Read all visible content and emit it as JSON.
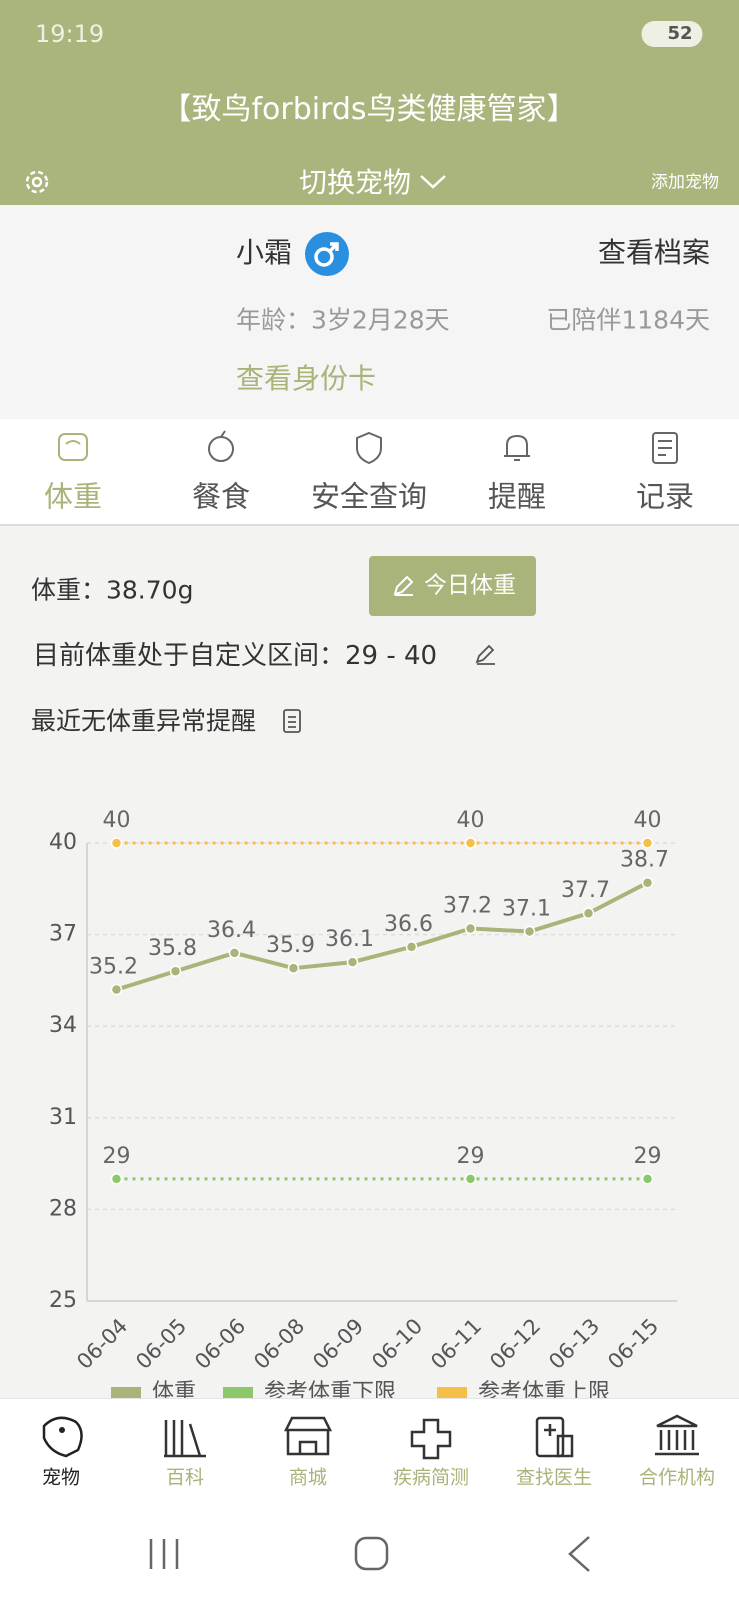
{
  "status": {
    "time": "19:19",
    "battery": "52"
  },
  "header": {
    "title": "【致鸟forbirds鸟类健康管家】",
    "switch_pet": "切换宠物",
    "add_pet": "添加宠物"
  },
  "pet": {
    "name": "小霜",
    "view_profile": "查看档案",
    "age": "年龄：3岁2月28天",
    "companion": "已陪伴1184天",
    "id_card": "查看身份卡"
  },
  "tabs": [
    "体重",
    "餐食",
    "安全查询",
    "提醒",
    "记录"
  ],
  "weight": {
    "current": "体重：38.70g",
    "button": "今日体重",
    "range": "目前体重处于自定义区间：29 - 40",
    "alert": "最近无体重异常提醒"
  },
  "chart_data": {
    "type": "line",
    "categories": [
      "06-04",
      "06-05",
      "06-06",
      "06-08",
      "06-09",
      "06-10",
      "06-11",
      "06-12",
      "06-13",
      "06-15"
    ],
    "series": [
      {
        "name": "体重",
        "color": "#a8b47a",
        "values": [
          35.2,
          35.8,
          36.4,
          35.9,
          36.1,
          36.6,
          37.2,
          37.1,
          37.7,
          38.7
        ]
      },
      {
        "name": "参考体重下限",
        "color": "#8dc76b",
        "values": [
          29,
          29,
          29,
          29,
          29,
          29,
          29,
          29,
          29,
          29
        ],
        "value_labels": [
          "29",
          null,
          null,
          null,
          null,
          null,
          "29",
          null,
          null,
          "29"
        ]
      },
      {
        "name": "参考体重上限",
        "color": "#f5c04a",
        "values": [
          40,
          40,
          40,
          40,
          40,
          40,
          40,
          40,
          40,
          40
        ],
        "value_labels": [
          "40",
          null,
          null,
          null,
          null,
          null,
          "40",
          null,
          null,
          "40"
        ]
      }
    ],
    "ylim": [
      25,
      40
    ],
    "yticks": [
      25,
      28,
      31,
      34,
      37,
      40
    ],
    "grid": true,
    "legend": "bottom"
  },
  "nav": [
    "宠物",
    "百科",
    "商城",
    "疾病简测",
    "查找医生",
    "合作机构"
  ]
}
